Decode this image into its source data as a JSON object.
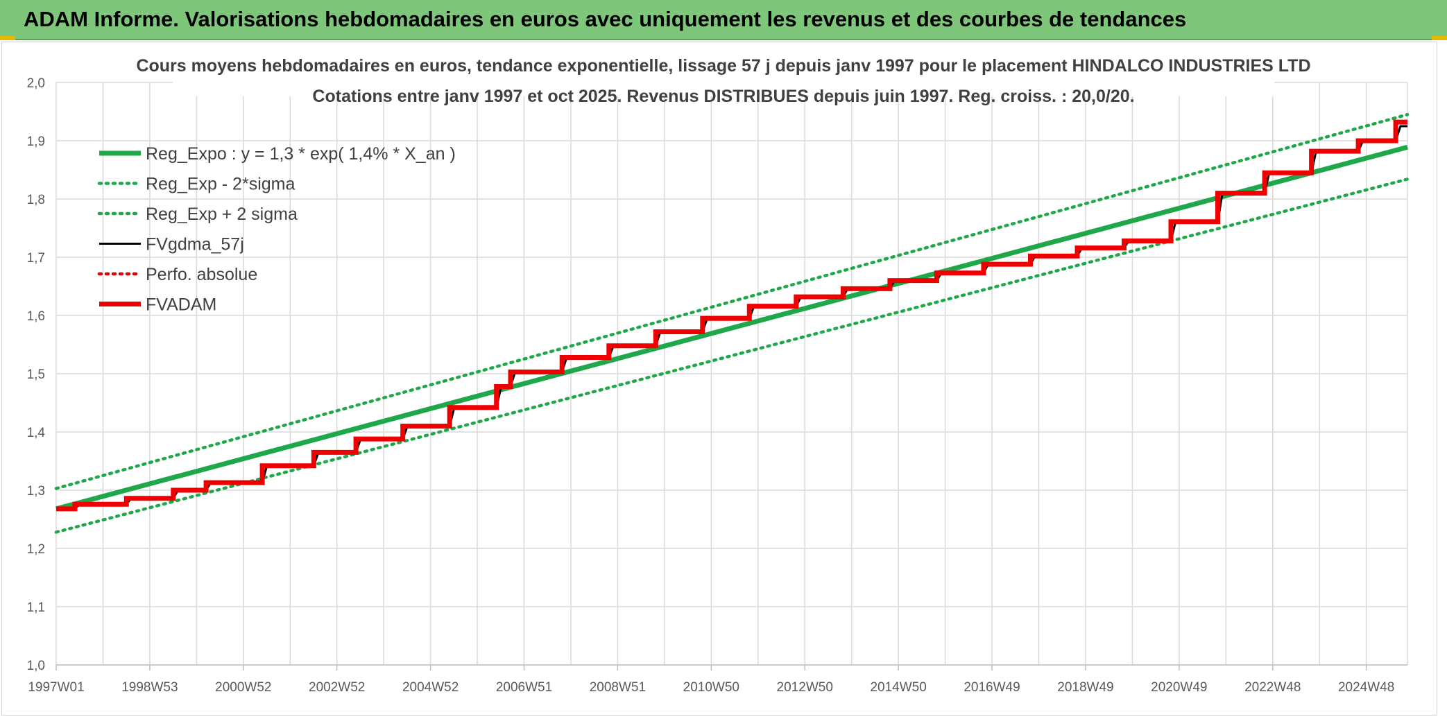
{
  "banner": {
    "title": "ADAM Informe. Valorisations hebdomadaires en euros avec uniquement les revenus et des courbes de tendances",
    "bg_color": "#7dc67a"
  },
  "chart_data": {
    "type": "line",
    "title": "Cours moyens hebdomadaires en euros, tendance exponentielle, lissage 57 j depuis janv 1997 pour le placement HINDALCO INDUSTRIES LTD",
    "subtitle": "Cotations entre janv 1997 et oct 2025. Revenus DISTRIBUES depuis juin 1997. Reg. croiss. : 20,0/20.",
    "x_ticks": [
      "1997W01",
      "1998W53",
      "2000W52",
      "2002W52",
      "2004W52",
      "2006W51",
      "2008W51",
      "2010W50",
      "2012W50",
      "2014W50",
      "2016W49",
      "2018W49",
      "2020W49",
      "2022W48",
      "2024W48"
    ],
    "x_range": [
      1997.0,
      2025.85
    ],
    "y_ticks": [
      "1,0",
      "1,1",
      "1,2",
      "1,3",
      "1,4",
      "1,5",
      "1,6",
      "1,7",
      "1,8",
      "1,9",
      "2,0"
    ],
    "ylim": [
      1.0,
      2.0
    ],
    "grid": true,
    "legend_position": "top-left",
    "series": [
      {
        "name": "Reg_Expo : y = 1,3 * exp( 1,4% *  X_an )",
        "color": "#1fa84a",
        "style": "solid-thick",
        "x": [
          1997.0,
          2025.85
        ],
        "y": [
          1.268,
          1.889
        ]
      },
      {
        "name": "Reg_Exp - 2*sigma",
        "color": "#1fa84a",
        "style": "dotted",
        "x": [
          1997.0,
          2025.85
        ],
        "y": [
          1.228,
          1.834
        ]
      },
      {
        "name": "Reg_Exp + 2 sigma",
        "color": "#1fa84a",
        "style": "dotted",
        "x": [
          1997.0,
          2025.85
        ],
        "y": [
          1.303,
          1.945
        ]
      },
      {
        "name": "FVgdma_57j",
        "color": "#000000",
        "style": "solid",
        "x": [
          1997.0,
          1997.4,
          1997.5,
          1998.5,
          1998.6,
          1999.5,
          1999.6,
          2000.2,
          2000.3,
          2001.4,
          2001.5,
          2002.5,
          2002.6,
          2003.4,
          2003.5,
          2004.4,
          2004.5,
          2005.4,
          2005.5,
          2006.4,
          2006.5,
          2006.7,
          2006.8,
          2007.8,
          2007.9,
          2008.8,
          2008.9,
          2009.8,
          2009.9,
          2010.8,
          2010.9,
          2011.8,
          2011.9,
          2012.8,
          2012.9,
          2013.8,
          2013.9,
          2014.8,
          2014.9,
          2015.8,
          2015.9,
          2016.8,
          2016.9,
          2017.8,
          2017.9,
          2018.8,
          2018.9,
          2019.8,
          2019.9,
          2020.8,
          2020.9,
          2021.8,
          2021.9,
          2022.8,
          2022.9,
          2023.8,
          2023.9,
          2024.8,
          2024.9,
          2025.6,
          2025.7,
          2025.85
        ],
        "y": [
          1.268,
          1.268,
          1.276,
          1.276,
          1.286,
          1.286,
          1.3,
          1.3,
          1.313,
          1.313,
          1.342,
          1.342,
          1.365,
          1.365,
          1.388,
          1.388,
          1.41,
          1.41,
          1.442,
          1.442,
          1.478,
          1.478,
          1.503,
          1.503,
          1.528,
          1.528,
          1.548,
          1.548,
          1.572,
          1.572,
          1.595,
          1.595,
          1.616,
          1.616,
          1.632,
          1.632,
          1.646,
          1.646,
          1.66,
          1.66,
          1.673,
          1.673,
          1.688,
          1.688,
          1.702,
          1.702,
          1.716,
          1.716,
          1.728,
          1.728,
          1.761,
          1.761,
          1.81,
          1.81,
          1.845,
          1.845,
          1.882,
          1.882,
          1.9,
          1.9,
          1.925,
          1.925
        ]
      },
      {
        "name": "Perfo. absolue",
        "color": "#e00000",
        "style": "dotted",
        "x": [],
        "y": []
      },
      {
        "name": "FVADAM",
        "color": "#ee0000",
        "style": "solid-thick",
        "x": [
          1997.0,
          1997.4,
          1997.4,
          1998.5,
          1998.5,
          1999.5,
          1999.5,
          2000.2,
          2000.2,
          2001.4,
          2001.4,
          2002.5,
          2002.5,
          2003.4,
          2003.4,
          2004.4,
          2004.4,
          2005.4,
          2005.4,
          2006.4,
          2006.4,
          2006.7,
          2006.7,
          2007.8,
          2007.8,
          2008.8,
          2008.8,
          2009.8,
          2009.8,
          2010.8,
          2010.8,
          2011.8,
          2011.8,
          2012.8,
          2012.8,
          2013.8,
          2013.8,
          2014.8,
          2014.8,
          2015.8,
          2015.8,
          2016.8,
          2016.8,
          2017.8,
          2017.8,
          2018.8,
          2018.8,
          2019.8,
          2019.8,
          2020.8,
          2020.8,
          2021.8,
          2021.8,
          2022.8,
          2022.8,
          2023.8,
          2023.8,
          2024.8,
          2024.8,
          2025.6,
          2025.6,
          2025.85
        ],
        "y": [
          1.268,
          1.268,
          1.276,
          1.276,
          1.286,
          1.286,
          1.3,
          1.3,
          1.313,
          1.313,
          1.342,
          1.342,
          1.365,
          1.365,
          1.388,
          1.388,
          1.41,
          1.41,
          1.442,
          1.442,
          1.478,
          1.478,
          1.503,
          1.503,
          1.528,
          1.528,
          1.548,
          1.548,
          1.572,
          1.572,
          1.595,
          1.595,
          1.616,
          1.616,
          1.632,
          1.632,
          1.646,
          1.646,
          1.66,
          1.66,
          1.673,
          1.673,
          1.688,
          1.688,
          1.702,
          1.702,
          1.716,
          1.716,
          1.728,
          1.728,
          1.761,
          1.761,
          1.81,
          1.81,
          1.845,
          1.845,
          1.882,
          1.882,
          1.9,
          1.9,
          1.932,
          1.932
        ]
      }
    ]
  }
}
